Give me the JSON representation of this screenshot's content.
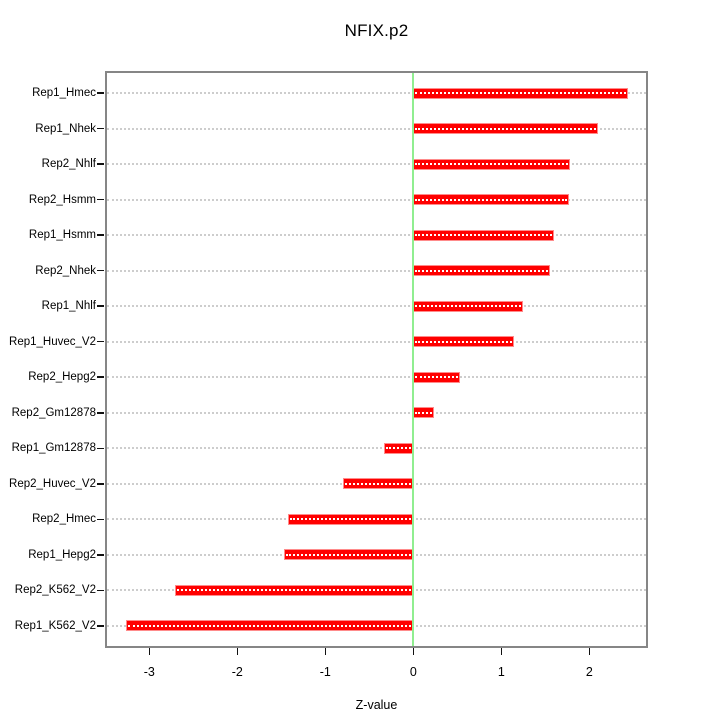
{
  "chart_data": {
    "type": "bar",
    "orientation": "horizontal",
    "title": "NFIX.p2",
    "xlabel": "Z-value",
    "ylabel": "",
    "categories": [
      "Rep1_Hmec",
      "Rep1_Nhek",
      "Rep2_Nhlf",
      "Rep2_Hsmm",
      "Rep1_Hsmm",
      "Rep2_Nhek",
      "Rep1_Nhlf",
      "Rep1_Huvec_V2",
      "Rep2_Hepg2",
      "Rep2_Gm12878",
      "Rep1_Gm12878",
      "Rep2_Huvec_V2",
      "Rep2_Hmec",
      "Rep1_Hepg2",
      "Rep2_K562_V2",
      "Rep1_K562_V2"
    ],
    "values": [
      2.44,
      2.1,
      1.78,
      1.77,
      1.6,
      1.55,
      1.25,
      1.15,
      0.53,
      0.23,
      -0.33,
      -0.8,
      -1.42,
      -1.47,
      -2.71,
      -3.26
    ],
    "xticks": [
      -3,
      -2,
      -1,
      0,
      1,
      2
    ],
    "xlim": [
      -3.5,
      2.65
    ],
    "grid": "dotted horizontal line per category",
    "legend": "none",
    "colors": {
      "bar_fill": "#ff0000",
      "bar_border": "#ff8b8b",
      "bar_center_dots": "#ffffff",
      "zero_line": "#90ee90",
      "grid_line": "#cdcdcd",
      "box_border": "#868686",
      "text": "#000000"
    }
  }
}
